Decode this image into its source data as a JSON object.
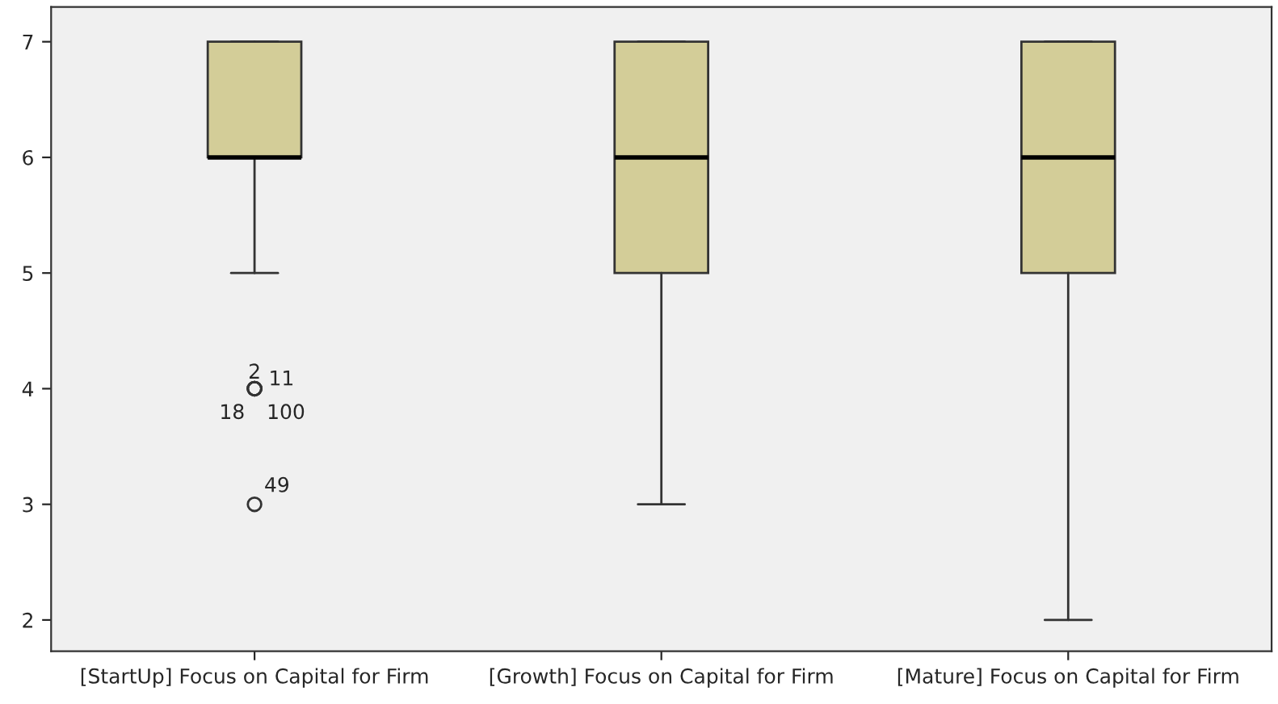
{
  "chart_data": {
    "type": "box",
    "categories": [
      "[StartUp] Focus on Capital for Firm",
      "[Growth] Focus on Capital for Firm",
      "[Mature] Focus on Capital for Firm"
    ],
    "boxes": [
      {
        "low": 5,
        "q1": 6,
        "median": 6,
        "q3": 7,
        "high": 7,
        "outliers": [
          4,
          4,
          4,
          4,
          3
        ]
      },
      {
        "low": 3,
        "q1": 5,
        "median": 6,
        "q3": 7,
        "high": 7
      },
      {
        "low": 2,
        "q1": 5,
        "median": 6,
        "q3": 7,
        "high": 7
      }
    ],
    "color": "#d3cd98",
    "ylim": [
      1.73,
      7.3
    ],
    "yticks": [
      2,
      3,
      4,
      5,
      6,
      7
    ],
    "grid": false,
    "annotations": [
      "2",
      "11",
      "18",
      "100",
      "49"
    ]
  }
}
